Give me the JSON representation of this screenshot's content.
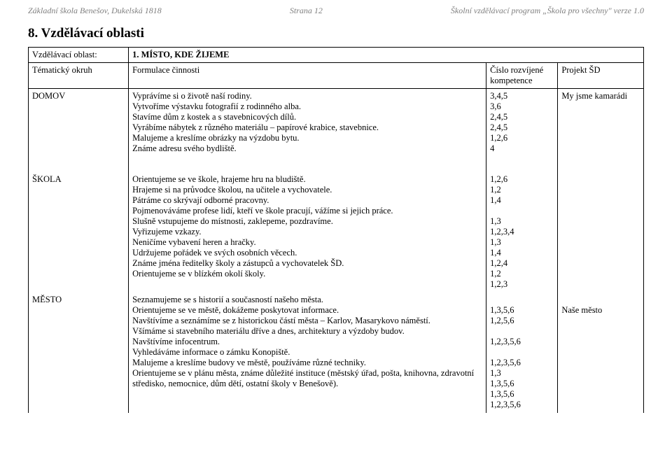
{
  "header": {
    "left": "Základní škola Benešov, Dukelská 1818",
    "center": "Strana 12",
    "right": "Školní vzdělávací program „Škola pro všechny\" verze 1.0"
  },
  "section_title": "8.  Vzdělávací  oblasti",
  "table": {
    "row1": {
      "a": "Vzdělávací oblast:",
      "b": "1. MÍSTO, KDE ŽIJEME"
    },
    "row2": {
      "a": "Tématický okruh",
      "b": "Formulace činnosti",
      "c": "Číslo rozvíjené kompetence",
      "d": "Projekt ŠD"
    },
    "domov": {
      "label": "DOMOV",
      "lines": "Vyprávíme si o životě naší rodiny.\nVytvoříme výstavku fotografií z rodinného alba.\nStavíme dům z kostek a s stavebnicových dílů.\nVyrábíme nábytek z různého materiálu – papírové krabice, stavebnice.\nMalujeme a kreslíme obrázky na výzdobu bytu.\nZnáme adresu svého bydliště.",
      "nums": "3,4,5\n3,6\n2,4,5\n2,4,5\n1,2,6\n4",
      "proj": "My jsme kamarádi"
    },
    "skola": {
      "label": "ŠKOLA",
      "lines": "Orientujeme se ve škole, hrajeme hru na bludiště.\nHrajeme si na průvodce školou, na učitele a vychovatele.\nPátráme co skrývají odborné pracovny.\nPojmenováváme profese lidí, kteří ve škole pracují, vážíme si jejich práce.\nSlušně vstupujeme do místnosti, zaklepeme, pozdravíme.\nVyřizujeme vzkazy.\nNeničíme vybavení heren a hračky.\nUdržujeme pořádek ve svých osobních věcech.\nZnáme jména ředitelky školy a zástupců a vychovatelek ŠD.\nOrientujeme se v blízkém okolí školy.",
      "nums": "1,2,6\n1,2\n1,4\n\n1,3\n1,2,3,4\n1,3\n1,4\n1,2,4\n1,2\n1,2,3"
    },
    "mesto": {
      "label": "MĚSTO",
      "lines": "Seznamujeme se s historií a současností našeho města.\nOrientujeme se ve městě, dokážeme poskytovat informace.\nNavštívíme a seznámíme se z historickou částí města – Karlov, Masarykovo náměstí.\nVšímáme si stavebního materiálu dříve a dnes, architektury a výzdoby budov.\nNavštívíme infocentrum.\nVyhledáváme informace o zámku Konopiště.\nMalujeme a kreslíme budovy ve městě, používáme různé techniky.\nOrientujeme se v plánu města, známe důležité instituce (městský úřad, pošta, knihovna, zdravotní středisko, nemocnice, dům dětí, ostatní školy v Benešově).",
      "nums": "\n1,3,5,6\n1,2,5,6\n\n1,2,3,5,6\n\n1,2,3,5,6\n1,3\n1,3,5,6\n1,3,5,6\n1,2,3,5,6",
      "proj": "\nNaše město"
    }
  }
}
